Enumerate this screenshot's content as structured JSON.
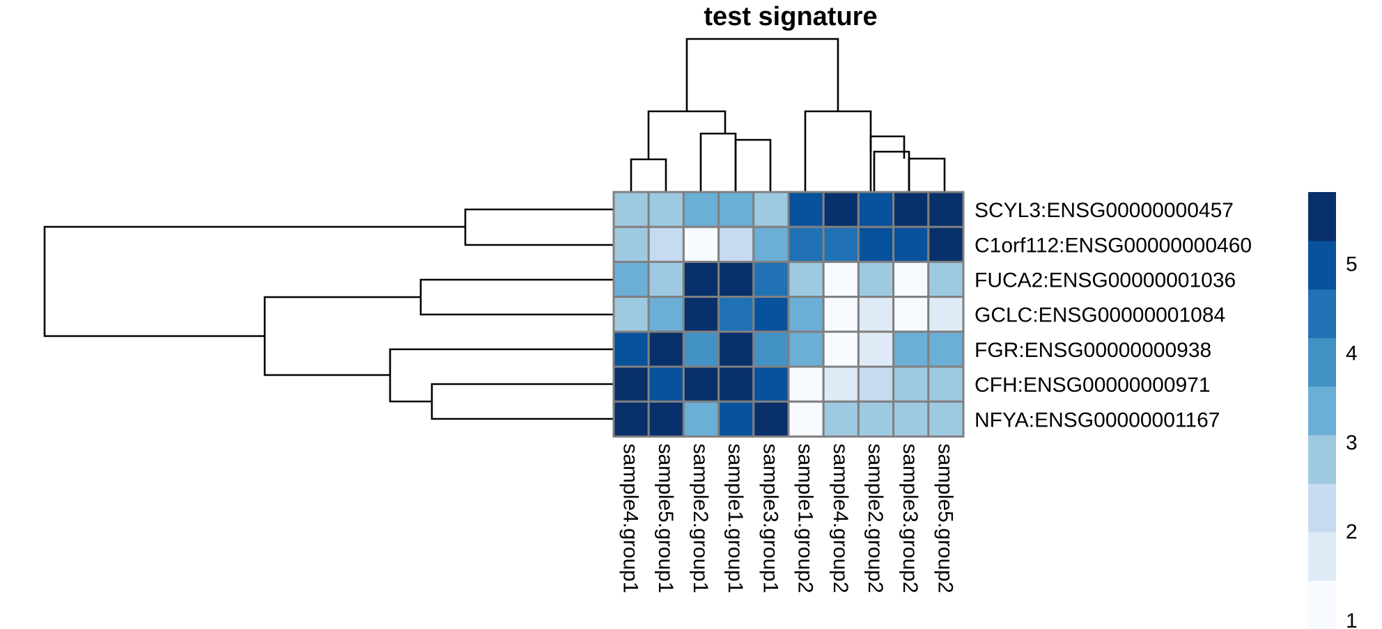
{
  "chart_data": {
    "type": "heatmap",
    "title": "test signature",
    "rows": [
      "SCYL3:ENSG00000000457",
      "C1orf112:ENSG00000000460",
      "FUCA2:ENSG00000001036",
      "GCLC:ENSG00000001084",
      "FGR:ENSG00000000938",
      "CFH:ENSG00000000971",
      "NFYA:ENSG00000001167"
    ],
    "columns": [
      "sample4.group1",
      "sample5.group1",
      "sample2.group1",
      "sample1.group1",
      "sample3.group1",
      "sample1.group2",
      "sample4.group2",
      "sample2.group2",
      "sample3.group2",
      "sample5.group2"
    ],
    "values": [
      [
        2.8,
        2.8,
        3.3,
        3.3,
        2.8,
        5.0,
        5.6,
        5.0,
        5.6,
        5.6
      ],
      [
        2.8,
        2.1,
        1.0,
        2.1,
        3.3,
        4.5,
        4.5,
        5.0,
        5.0,
        5.6
      ],
      [
        3.3,
        2.8,
        5.6,
        5.6,
        4.5,
        2.8,
        1.3,
        2.8,
        1.0,
        2.8
      ],
      [
        2.8,
        3.3,
        5.6,
        4.5,
        5.0,
        3.3,
        1.0,
        1.8,
        1.3,
        1.8
      ],
      [
        5.0,
        5.6,
        3.8,
        5.6,
        3.8,
        3.3,
        1.0,
        1.8,
        3.3,
        3.3
      ],
      [
        5.6,
        5.0,
        5.6,
        5.6,
        5.0,
        1.0,
        1.8,
        2.1,
        2.8,
        2.8
      ],
      [
        5.6,
        5.6,
        3.3,
        5.0,
        5.6,
        1.3,
        2.8,
        2.8,
        2.8,
        2.8
      ]
    ],
    "legend": {
      "ticks": [
        1,
        2,
        3,
        4,
        5
      ],
      "range": [
        0.9,
        5.8
      ],
      "palette": [
        "#F7FBFF",
        "#DEEBF7",
        "#C6DBEF",
        "#9ECAE1",
        "#6BAED6",
        "#4292C6",
        "#2171B5",
        "#08519C",
        "#08306B"
      ]
    },
    "cell_border_color": "#808080",
    "row_dendrogram": "left",
    "column_dendrogram": "top"
  }
}
